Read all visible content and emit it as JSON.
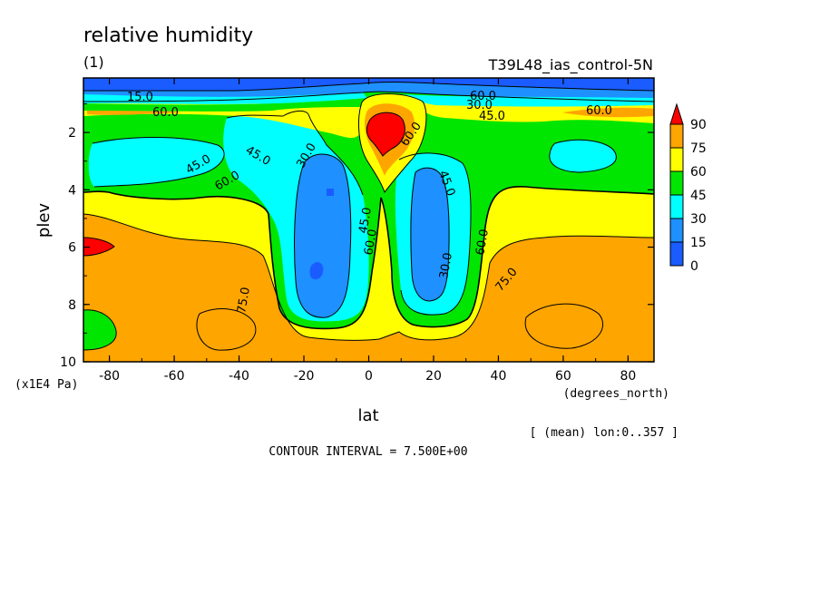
{
  "chart_data": {
    "type": "heatmap",
    "title": "relative humidity",
    "panel_label": "(1)",
    "dataset": "T39L48_ias_control-5N",
    "xlabel": "lat",
    "xunits": "(degrees_north)",
    "ylabel": "plev",
    "yunits": "(x1E4 Pa)",
    "averaging": "[ (mean) lon:0..357 ]",
    "contour_interval": "CONTOUR INTERVAL = 7.500E+00",
    "xlim": [
      -88,
      88
    ],
    "ylim": [
      10,
      0.1
    ],
    "y_reversed": true,
    "xticks": [
      -80,
      -60,
      -40,
      -20,
      0,
      20,
      40,
      60,
      80
    ],
    "xtick_labels": [
      "-80",
      "-60",
      "-40",
      "-20",
      "0",
      "20",
      "40",
      "60",
      "80"
    ],
    "yticks": [
      2,
      4,
      6,
      8,
      10
    ],
    "ytick_labels": [
      "2",
      "4",
      "6",
      "8",
      "10"
    ],
    "levels": [
      0,
      15,
      30,
      45,
      60,
      75,
      90
    ],
    "colorbar_labels": [
      "90",
      "75",
      "60",
      "45",
      "30",
      "15",
      "0"
    ],
    "colors": [
      "#1a5cff",
      "#1e90ff",
      "#00ffff",
      "#00e600",
      "#ffff00",
      "#ffa500",
      "#ff0000"
    ],
    "contour_labels": [
      "15.0",
      "60.0",
      "45.0",
      "30.0",
      "45.0",
      "60.0",
      "60.0",
      "45.0",
      "60.0",
      "30.0",
      "45.0",
      "60.0",
      "60.0",
      "45.0",
      "30.0",
      "60.0",
      "75.0",
      "75.0"
    ]
  }
}
